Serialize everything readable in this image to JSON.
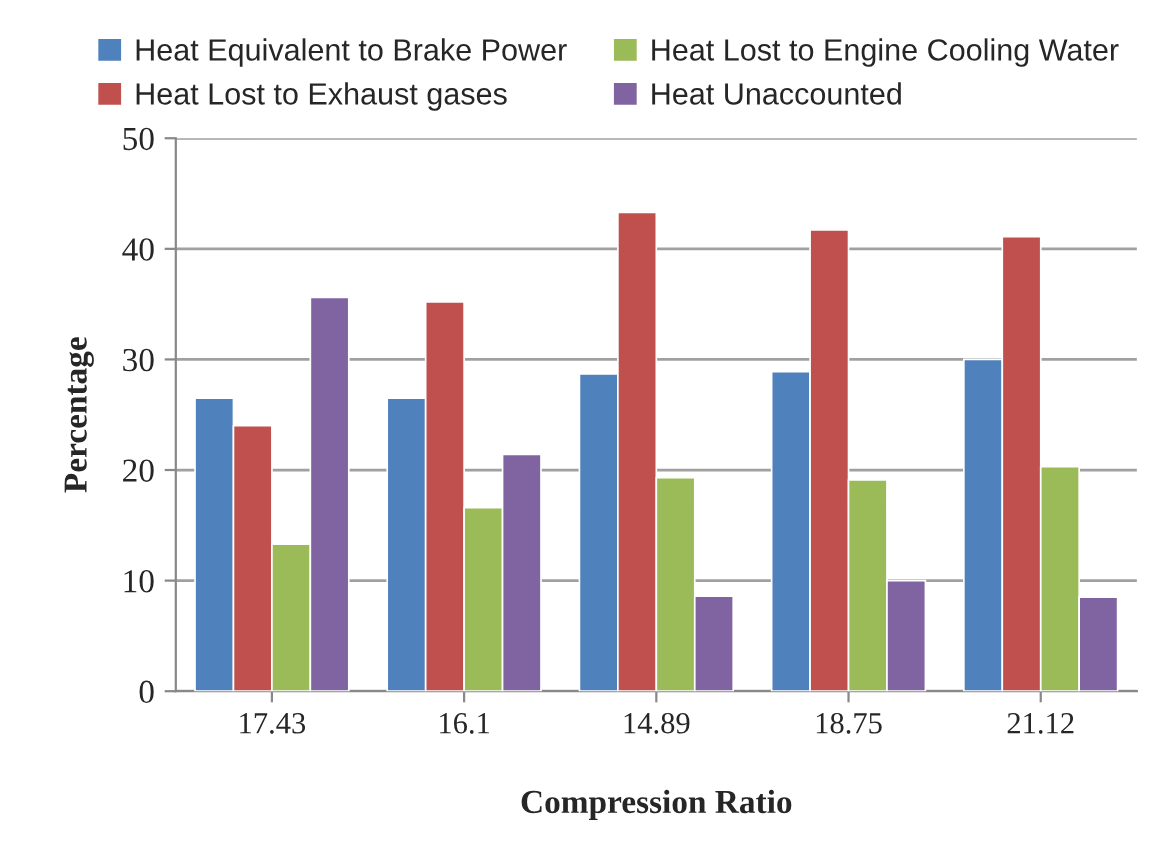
{
  "chart_data": {
    "type": "bar",
    "xlabel": "Compression Ratio",
    "ylabel": "Percentage",
    "categories": [
      "17.43",
      "16.1",
      "14.89",
      "18.75",
      "21.12"
    ],
    "series": [
      {
        "name": "Heat Equivalent to Brake Power",
        "color": "#4f81bd",
        "values": [
          26.5,
          26.5,
          28.7,
          28.9,
          30.0
        ]
      },
      {
        "name": "Heat Lost to Exhaust gases",
        "color": "#c0504d",
        "values": [
          24.0,
          35.2,
          43.3,
          41.7,
          41.1
        ]
      },
      {
        "name": "Heat Lost to Engine Cooling Water",
        "color": "#9bbb59",
        "values": [
          13.3,
          16.6,
          19.3,
          19.1,
          20.3
        ]
      },
      {
        "name": "Heat Unaccounted",
        "color": "#8064a2",
        "values": [
          35.6,
          21.4,
          8.6,
          10.0,
          8.5
        ]
      }
    ],
    "ylim": [
      0,
      50
    ],
    "yticks": [
      0,
      10,
      20,
      30,
      40,
      50
    ],
    "grid": "y",
    "legend": "top"
  }
}
